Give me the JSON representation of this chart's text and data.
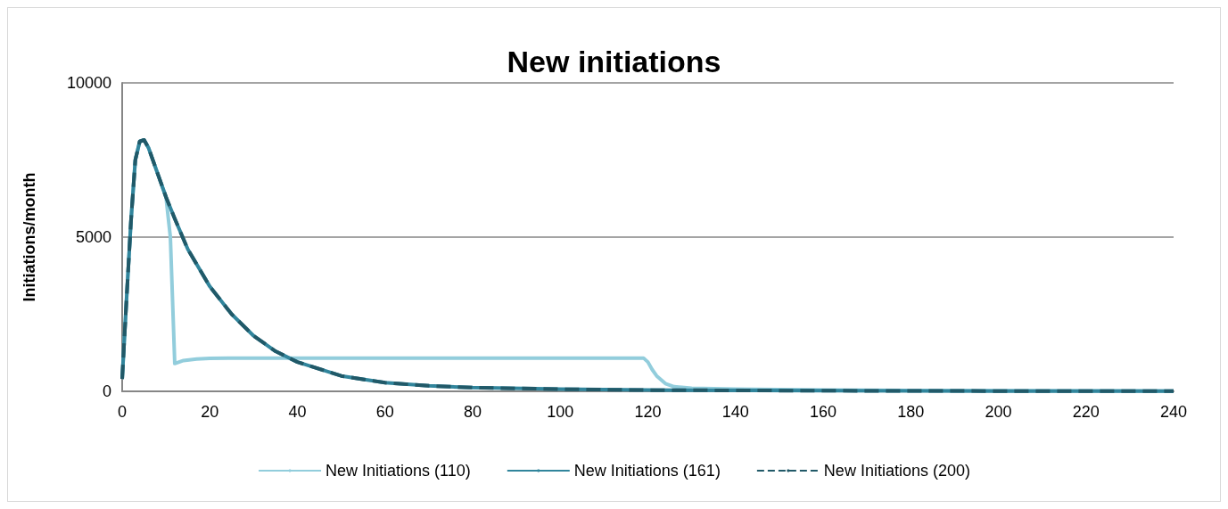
{
  "chart_data": {
    "type": "line",
    "title": "New initiations",
    "ylabel": "Initiations/month",
    "xlim": [
      0,
      240
    ],
    "xticks": [
      0,
      20,
      40,
      60,
      80,
      100,
      120,
      140,
      160,
      180,
      200,
      220,
      240
    ],
    "ylim": [
      0,
      10000
    ],
    "yticks": [
      0,
      5000,
      10000
    ],
    "grid": "y",
    "legend": "bottom",
    "marker": "none",
    "series": [
      {
        "name": "New Initiations (110)",
        "color": "#92cddc",
        "line_style": "solid",
        "x": [
          0,
          1,
          2,
          3,
          4,
          5,
          6,
          8,
          10,
          11,
          12,
          14,
          17,
          20,
          30,
          60,
          100,
          119,
          120,
          121,
          122,
          124,
          126,
          130,
          140,
          160,
          200,
          240
        ],
        "values": [
          400,
          3000,
          5500,
          7500,
          8100,
          8150,
          7900,
          7100,
          6300,
          5000,
          900,
          1000,
          1050,
          1070,
          1080,
          1080,
          1080,
          1080,
          950,
          700,
          500,
          250,
          150,
          100,
          70,
          40,
          20,
          10
        ]
      },
      {
        "name": "New Initiations (161)",
        "color": "#31859c",
        "line_style": "solid",
        "x": [
          0,
          1,
          2,
          3,
          4,
          5,
          6,
          8,
          10,
          12,
          15,
          20,
          25,
          30,
          35,
          40,
          50,
          60,
          70,
          80,
          100,
          120,
          160,
          200,
          240
        ],
        "values": [
          400,
          3000,
          5500,
          7500,
          8100,
          8150,
          7900,
          7100,
          6300,
          5600,
          4600,
          3400,
          2500,
          1800,
          1300,
          950,
          500,
          280,
          180,
          120,
          70,
          40,
          20,
          10,
          5
        ]
      },
      {
        "name": "New Initiations (200)",
        "color": "#215968",
        "line_style": "dashed",
        "x": [
          0,
          1,
          2,
          3,
          4,
          5,
          6,
          8,
          10,
          12,
          15,
          20,
          25,
          30,
          35,
          40,
          50,
          60,
          70,
          80,
          100,
          120,
          160,
          200,
          240
        ],
        "values": [
          400,
          3000,
          5500,
          7500,
          8100,
          8150,
          7900,
          7100,
          6300,
          5600,
          4600,
          3400,
          2500,
          1800,
          1300,
          950,
          500,
          280,
          180,
          120,
          70,
          40,
          20,
          10,
          5
        ]
      }
    ]
  }
}
